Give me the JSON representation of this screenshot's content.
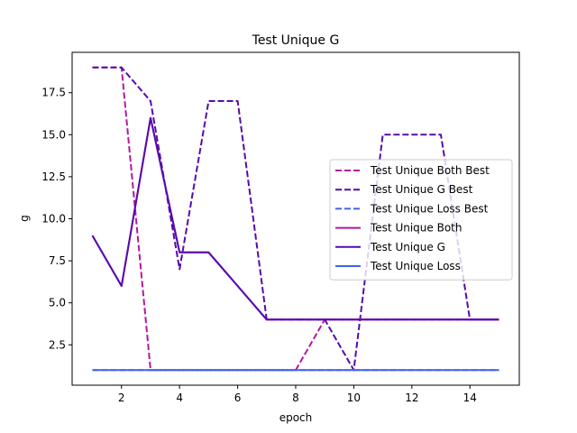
{
  "chart_data": {
    "type": "line",
    "title": "Test Unique G",
    "xlabel": "epoch",
    "ylabel": "g",
    "xlim": [
      0.3,
      15.7
    ],
    "ylim": [
      0.1,
      19.9
    ],
    "x_ticks": [
      2,
      4,
      6,
      8,
      10,
      12,
      14
    ],
    "y_ticks": [
      2.5,
      5.0,
      7.5,
      10.0,
      12.5,
      15.0,
      17.5
    ],
    "grid": false,
    "legend_position": "center-right",
    "x": [
      1,
      2,
      3,
      4,
      5,
      6,
      7,
      8,
      9,
      10,
      11,
      12,
      13,
      14,
      15
    ],
    "series": [
      {
        "name": "Test Unique Both Best",
        "color": "#b5179e",
        "style": "dashed",
        "values": [
          19,
          19,
          1,
          1,
          1,
          1,
          1,
          1,
          4,
          4,
          4,
          4,
          4,
          4,
          4
        ]
      },
      {
        "name": "Test Unique G Best",
        "color": "#560bad",
        "style": "dashed",
        "values": [
          19,
          19,
          17,
          7,
          17,
          17,
          4,
          4,
          4,
          1,
          15,
          15,
          15,
          4,
          4
        ]
      },
      {
        "name": "Test Unique Loss Best",
        "color": "#4361ee",
        "style": "dashed",
        "values": [
          1,
          1,
          1,
          1,
          1,
          1,
          1,
          1,
          1,
          1,
          1,
          1,
          1,
          1,
          1
        ]
      },
      {
        "name": "Test Unique Both",
        "color": "#b5179e",
        "style": "solid",
        "values": [
          9,
          6,
          16,
          8,
          8,
          6,
          4,
          4,
          4,
          4,
          4,
          4,
          4,
          4,
          4
        ]
      },
      {
        "name": "Test Unique G",
        "color": "#560bad",
        "style": "solid",
        "values": [
          9,
          6,
          16,
          8,
          8,
          6,
          4,
          4,
          4,
          4,
          4,
          4,
          4,
          4,
          4
        ]
      },
      {
        "name": "Test Unique Loss",
        "color": "#4361ee",
        "style": "solid",
        "values": [
          1,
          1,
          1,
          1,
          1,
          1,
          1,
          1,
          1,
          1,
          1,
          1,
          1,
          1,
          1
        ]
      }
    ]
  }
}
